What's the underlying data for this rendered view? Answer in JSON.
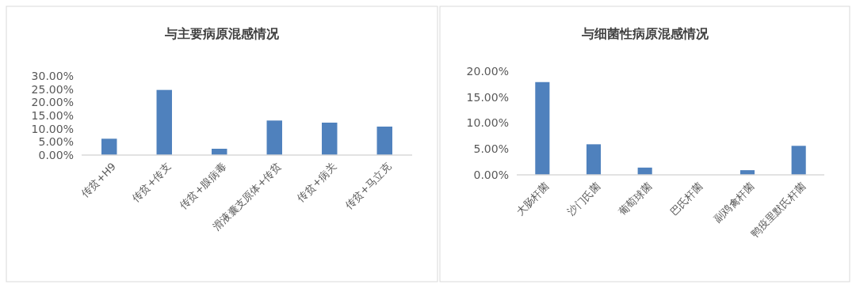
{
  "chart_data": [
    {
      "type": "bar",
      "title": "与主要病原混感情况",
      "categories": [
        "传贫+H9",
        "传贫+传支",
        "传贫+腺病毒",
        "滑液囊支原体+传贫",
        "传贫+病关",
        "传贫+马立克"
      ],
      "values": [
        6.2,
        24.7,
        2.4,
        13.1,
        12.3,
        10.8
      ],
      "color": "#4f81bd",
      "ylim": [
        0,
        30
      ],
      "yticks": [
        {
          "value": 0,
          "label": "0.00%"
        },
        {
          "value": 5,
          "label": "5.00%"
        },
        {
          "value": 10,
          "label": "10.00%"
        },
        {
          "value": 15,
          "label": "15.00%"
        },
        {
          "value": 20,
          "label": "20.00%"
        },
        {
          "value": 25,
          "label": "25.00%"
        },
        {
          "value": 30,
          "label": "30.00%"
        }
      ],
      "grid": false
    },
    {
      "type": "bar",
      "title": "与细菌性病原混感情况",
      "categories": [
        "大肠杆菌",
        "沙门氏菌",
        "葡萄球菌",
        "巴氏杆菌",
        "副鸡禽杆菌",
        "鸭疫里默氏杆菌"
      ],
      "values": [
        17.9,
        5.9,
        1.4,
        0,
        0.9,
        5.6
      ],
      "color": "#4f81bd",
      "ylim": [
        0,
        20
      ],
      "yticks": [
        {
          "value": 0,
          "label": "0.00%"
        },
        {
          "value": 5,
          "label": "5.00%"
        },
        {
          "value": 10,
          "label": "10.00%"
        },
        {
          "value": 15,
          "label": "15.00%"
        },
        {
          "value": 20,
          "label": "20.00%"
        }
      ],
      "grid": false
    }
  ]
}
